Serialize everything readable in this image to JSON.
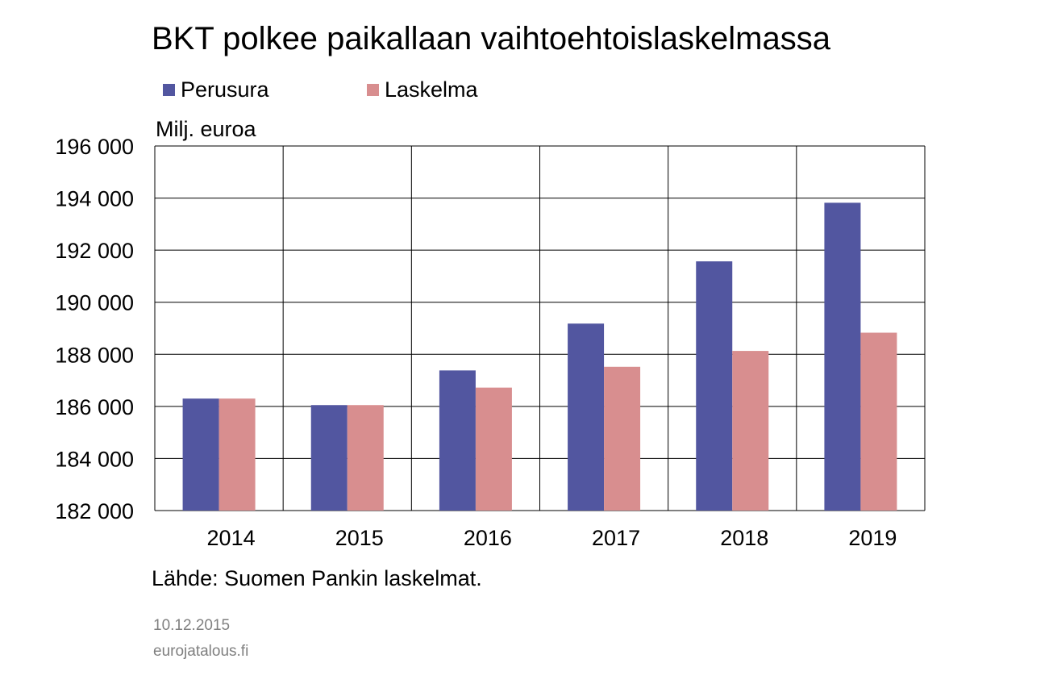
{
  "chart_data": {
    "type": "bar",
    "title": "BKT polkee paikallaan vaihtoehtoislaskelmassa",
    "ylabel": "Milj. euroa",
    "categories": [
      "2014",
      "2015",
      "2016",
      "2017",
      "2018",
      "2019"
    ],
    "series": [
      {
        "name": "Perusura",
        "color": "#5256a0",
        "values": [
          186300,
          186050,
          187380,
          189180,
          191570,
          193820
        ]
      },
      {
        "name": "Laskelma",
        "color": "#d88e8f",
        "values": [
          186300,
          186050,
          186720,
          187520,
          188130,
          188830
        ]
      }
    ],
    "ylim": [
      182000,
      196000
    ],
    "yticks": [
      182000,
      184000,
      186000,
      188000,
      190000,
      192000,
      194000,
      196000
    ],
    "ytick_labels": [
      "182 000",
      "184 000",
      "186 000",
      "188 000",
      "190 000",
      "192 000",
      "194 000",
      "196 000"
    ],
    "grid": true,
    "legend_position": "top-left"
  },
  "footer": {
    "source": "Lähde: Suomen Pankin laskelmat.",
    "date": "10.12.2015",
    "site": "eurojatalous.fi"
  }
}
